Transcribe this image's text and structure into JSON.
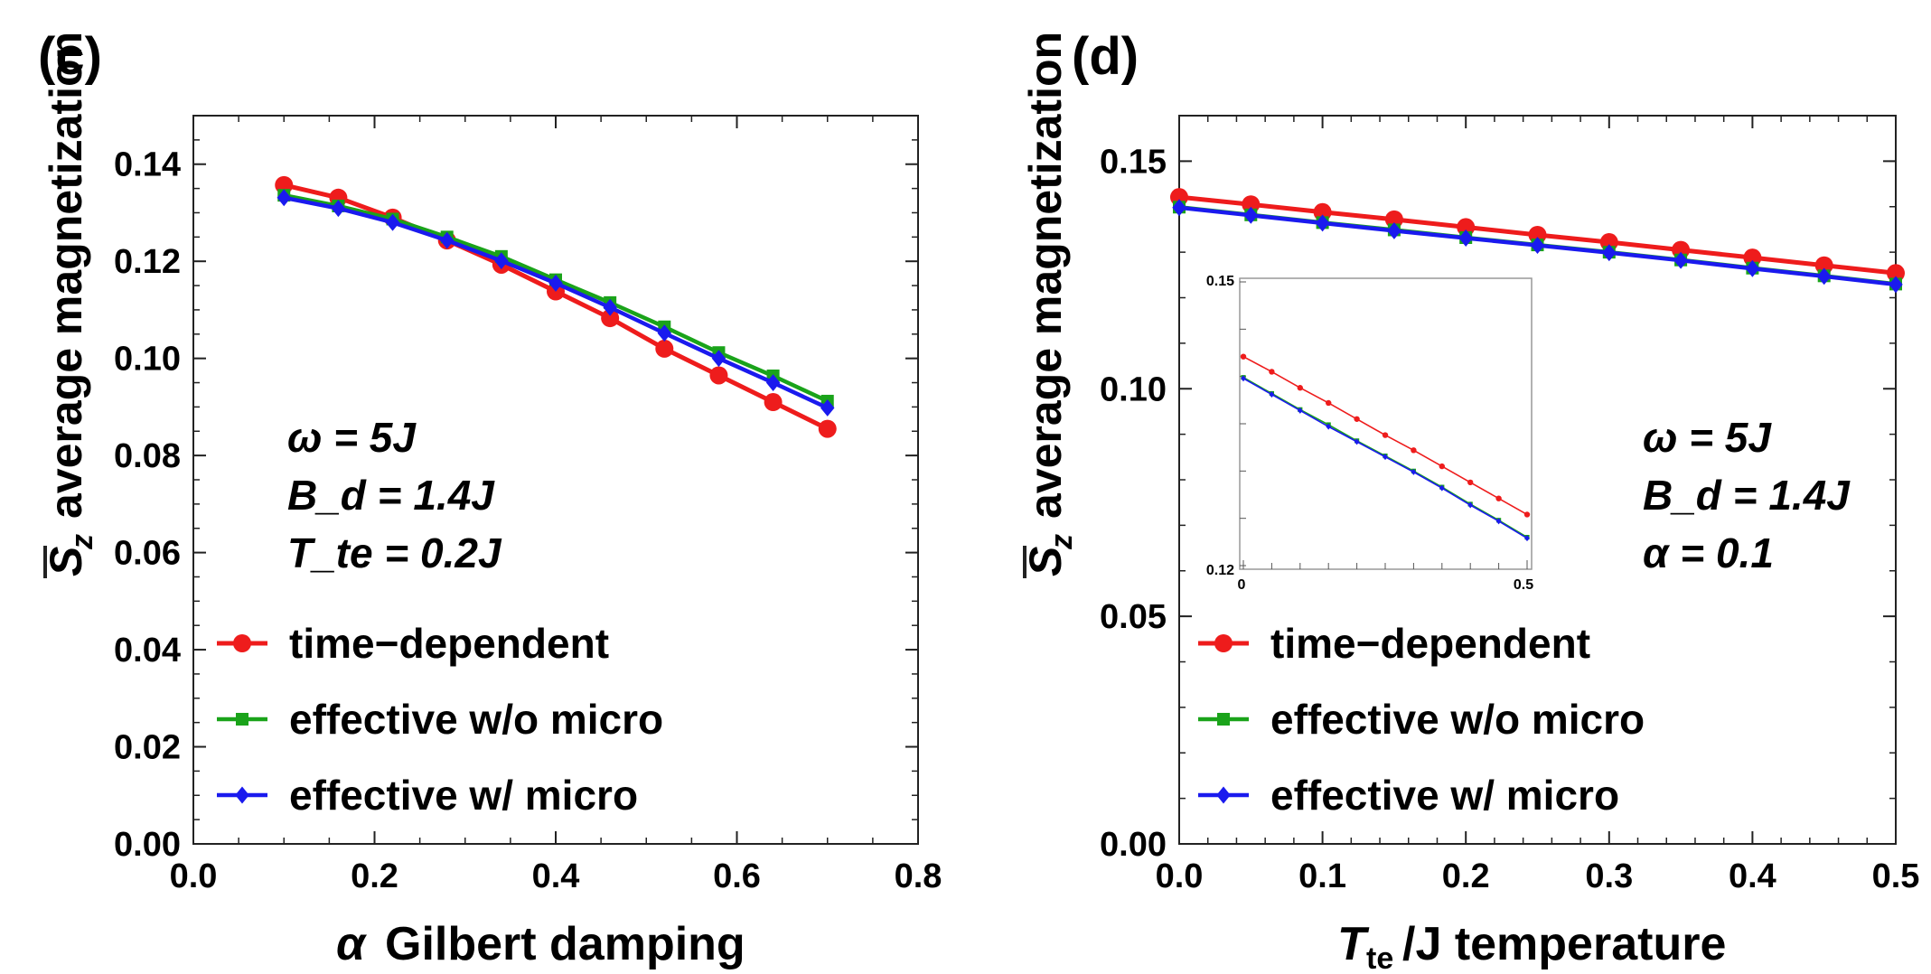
{
  "chart_data": [
    {
      "type": "line",
      "panel_label": "(c)",
      "xlabel_symbol": "α",
      "xlabel_text": "Gilbert damping",
      "ylabel_text": "average magnetization",
      "xlim": [
        0.0,
        0.8
      ],
      "ylim": [
        0.0,
        0.15
      ],
      "xticks": [
        0.0,
        0.2,
        0.4,
        0.6,
        0.8
      ],
      "yticks": [
        0.0,
        0.02,
        0.04,
        0.06,
        0.08,
        0.1,
        0.12,
        0.14
      ],
      "xtick_labels": [
        "0.0",
        "0.2",
        "0.4",
        "0.6",
        "0.8"
      ],
      "ytick_labels": [
        "0.00",
        "0.02",
        "0.04",
        "0.06",
        "0.08",
        "0.10",
        "0.12",
        "0.14"
      ],
      "grid": false,
      "legend_position": "bottom-left",
      "annotation": [
        "ω = 5J",
        "B_d = 1.4J",
        "T_te = 0.2J"
      ],
      "x": [
        0.1,
        0.16,
        0.22,
        0.28,
        0.34,
        0.4,
        0.46,
        0.52,
        0.58,
        0.64,
        0.7
      ],
      "series": [
        {
          "name": "time−dependent",
          "color": "#ee1c1c",
          "marker": "circle",
          "values": [
            0.1357,
            0.1331,
            0.129,
            0.1243,
            0.1193,
            0.1138,
            0.1083,
            0.102,
            0.0965,
            0.091,
            0.0855
          ]
        },
        {
          "name": "effective w/o micro",
          "color": "#1aa31a",
          "marker": "square",
          "values": [
            0.1336,
            0.1314,
            0.1287,
            0.125,
            0.121,
            0.1162,
            0.1115,
            0.1065,
            0.1012,
            0.0964,
            0.0912
          ]
        },
        {
          "name": "effective w/ micro",
          "color": "#1a1aee",
          "marker": "diamond",
          "values": [
            0.1331,
            0.1309,
            0.128,
            0.1243,
            0.1201,
            0.1155,
            0.1105,
            0.1052,
            0.1,
            0.095,
            0.0898
          ]
        }
      ]
    },
    {
      "type": "line",
      "panel_label": "(d)",
      "xlabel_symbol": "T",
      "xlabel_sub": "te",
      "xlabel_text": "/J temperature",
      "ylabel_text": "average magnetization",
      "xlim": [
        0.0,
        0.5
      ],
      "ylim": [
        0.0,
        0.16
      ],
      "xticks": [
        0.0,
        0.1,
        0.2,
        0.3,
        0.4,
        0.5
      ],
      "yticks": [
        0.0,
        0.05,
        0.1,
        0.15
      ],
      "xtick_labels": [
        "0.0",
        "0.1",
        "0.2",
        "0.3",
        "0.4",
        "0.5"
      ],
      "ytick_labels": [
        "0.00",
        "0.05",
        "0.10",
        "0.15"
      ],
      "grid": false,
      "legend_position": "bottom-left",
      "annotation": [
        "ω = 5J",
        "B_d = 1.4J",
        "α = 0.1"
      ],
      "x": [
        0.0,
        0.05,
        0.1,
        0.15,
        0.2,
        0.25,
        0.3,
        0.35,
        0.4,
        0.45,
        0.5
      ],
      "series": [
        {
          "name": "time−dependent",
          "color": "#ee1c1c",
          "marker": "circle",
          "values": [
            0.1421,
            0.1405,
            0.1388,
            0.1372,
            0.1355,
            0.1338,
            0.1322,
            0.1305,
            0.1288,
            0.1271,
            0.1254
          ]
        },
        {
          "name": "effective w/o micro",
          "color": "#1aa31a",
          "marker": "square",
          "values": [
            0.1399,
            0.1382,
            0.1365,
            0.1349,
            0.1332,
            0.1316,
            0.13,
            0.1283,
            0.1265,
            0.1248,
            0.123
          ]
        },
        {
          "name": "effective w/ micro",
          "color": "#1a1aee",
          "marker": "diamond",
          "values": [
            0.1398,
            0.1381,
            0.1364,
            0.1347,
            0.1331,
            0.1315,
            0.1299,
            0.1282,
            0.1264,
            0.1247,
            0.1229
          ]
        }
      ],
      "inset": {
        "xlim": [
          0.0,
          0.5
        ],
        "ylim": [
          0.12,
          0.15
        ],
        "xtick_labels": [
          "0",
          "0.5"
        ],
        "ytick_labels": [
          "0.12",
          "0.15"
        ]
      }
    }
  ]
}
